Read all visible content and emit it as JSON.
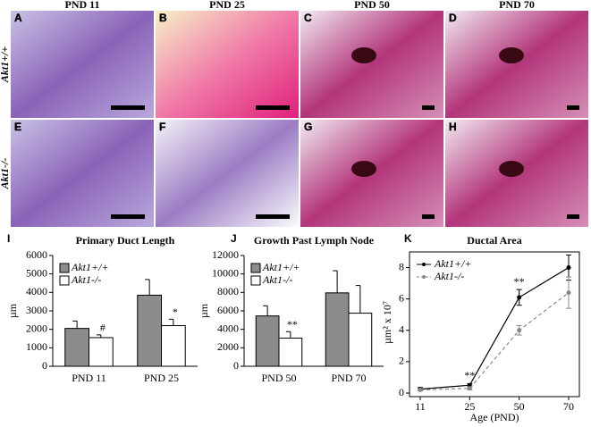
{
  "figure": {
    "columns": [
      "PND 11",
      "PND 25",
      "PND 50",
      "PND 70"
    ],
    "rows": [
      "Akt1+/+",
      "Akt1-/-"
    ],
    "panels": [
      "A",
      "B",
      "C",
      "D",
      "E",
      "F",
      "G",
      "H"
    ],
    "chart_letters": [
      "I",
      "J",
      "K"
    ]
  },
  "chart_data": [
    {
      "type": "bar",
      "title": "Primary Duct Length",
      "y_label": "µm",
      "categories": [
        "PND 11",
        "PND 25"
      ],
      "series": [
        {
          "name": "Akt1+/+",
          "color": "#8c8c8c",
          "values": [
            2050,
            3850
          ],
          "errors": [
            400,
            850
          ],
          "marks": [
            null,
            null
          ]
        },
        {
          "name": "Akt1-/-",
          "color": "#ffffff",
          "values": [
            1550,
            2200
          ],
          "errors": [
            150,
            350
          ],
          "marks": [
            "#",
            "*"
          ]
        }
      ],
      "ylim": [
        0,
        6000
      ],
      "yticks": [
        0,
        1000,
        2000,
        3000,
        4000,
        5000,
        6000
      ],
      "legend": "top-left"
    },
    {
      "type": "bar",
      "title": "Growth Past Lymph Node",
      "y_label": "µm",
      "categories": [
        "PND 50",
        "PND 70"
      ],
      "series": [
        {
          "name": "Akt1+/+",
          "color": "#8c8c8c",
          "values": [
            5450,
            7950
          ],
          "errors": [
            1100,
            2400
          ],
          "marks": [
            null,
            null
          ]
        },
        {
          "name": "Akt1-/-",
          "color": "#ffffff",
          "values": [
            3050,
            5750
          ],
          "errors": [
            700,
            3000
          ],
          "marks": [
            "**",
            null
          ]
        }
      ],
      "ylim": [
        0,
        12000
      ],
      "yticks": [
        0,
        2000,
        4000,
        6000,
        8000,
        10000,
        12000
      ],
      "legend": "top-left"
    },
    {
      "type": "line",
      "title": "Ductal Area",
      "y_label": "µm² x 10⁷",
      "x_label": "Age (PND)",
      "categories": [
        "11",
        "25",
        "50",
        "70"
      ],
      "series": [
        {
          "name": "Akt1+/+",
          "color": "#000000",
          "dash": false,
          "values": [
            0.25,
            0.5,
            6.1,
            8.0
          ],
          "errors": [
            0.1,
            0.1,
            0.5,
            0.8
          ],
          "marks": [
            null,
            "**",
            "**",
            null
          ]
        },
        {
          "name": "Akt1-/-",
          "color": "#888888",
          "dash": true,
          "values": [
            0.2,
            0.3,
            4.0,
            6.4
          ],
          "errors": [
            0.05,
            0.1,
            0.3,
            1.0
          ],
          "marks": [
            null,
            null,
            null,
            null
          ]
        }
      ],
      "ylim": [
        0,
        9
      ],
      "yticks": [
        0,
        2,
        4,
        6,
        8
      ],
      "legend": "top-left"
    }
  ]
}
